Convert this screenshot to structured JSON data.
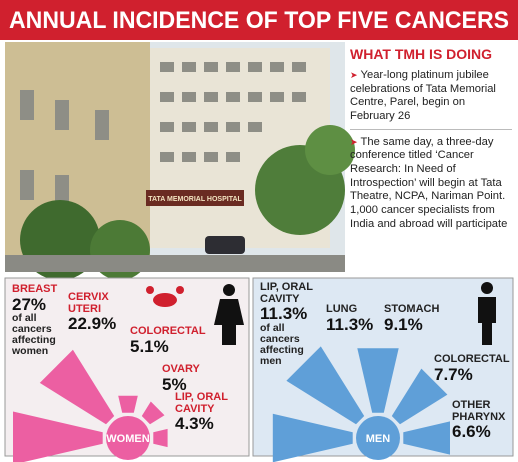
{
  "title": "ANNUAL INCIDENCE OF TOP FIVE CANCERS",
  "photo": {
    "sign": "TATA MEMORIAL HOSPITAL"
  },
  "sidebar": {
    "heading": "WHAT TMH IS DOING",
    "items": [
      "Year-long platinum jubilee celebrations of Tata Memorial Centre, Parel, begin on February 26",
      "The same day, a three-day conference titled ‘Cancer Research: In Need of Introspection’ will begin at Tata Theatre, NCPA, Nariman Point. 1,000 cancer specialists from India and abroad will participate"
    ]
  },
  "chart_data": [
    {
      "type": "radial-bar",
      "title": "WOMEN",
      "note": "of all cancers affecting women",
      "color": "#ec5fa2",
      "categories": [
        "BREAST",
        "CERVIX UTERI",
        "COLORECTAL",
        "OVARY",
        "LIP, ORAL CAVITY"
      ],
      "values": [
        27,
        22.9,
        5.1,
        5,
        4.3
      ],
      "value_labels": [
        "27%",
        "22.9%",
        "5.1%",
        "5%",
        "4.3%"
      ]
    },
    {
      "type": "radial-bar",
      "title": "MEN",
      "note": "of all cancers affecting men",
      "color": "#5f9fd8",
      "categories": [
        "LIP, ORAL CAVITY",
        "LUNG",
        "STOMACH",
        "COLORECTAL",
        "OTHER PHARYNX"
      ],
      "values": [
        11.3,
        11.3,
        9.1,
        7.7,
        6.6
      ],
      "value_labels": [
        "11.3%",
        "11.3%",
        "9.1%",
        "7.7%",
        "6.6%"
      ]
    }
  ]
}
